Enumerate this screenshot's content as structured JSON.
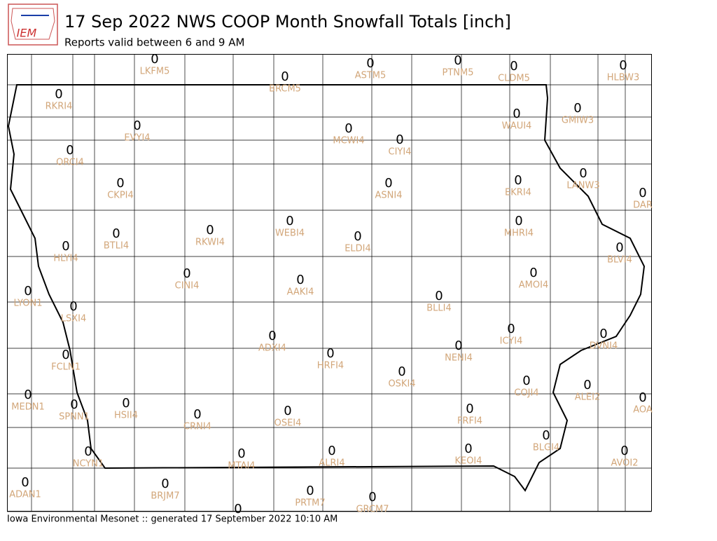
{
  "header": {
    "logo": "IEM",
    "title": "17 Sep 2022 NWS COOP Month Snowfall Totals [inch]",
    "subtitle": "Reports valid between 6 and 9 AM"
  },
  "stations": [
    {
      "label": "LKFM5",
      "value": 0
    },
    {
      "label": "BRCM5",
      "value": 0
    },
    {
      "label": "ASTM5",
      "value": 0
    },
    {
      "label": "PTNM5",
      "value": 0
    },
    {
      "label": "CLDM5",
      "value": 0
    },
    {
      "label": "HLBW3",
      "value": 0
    },
    {
      "label": "RKRI4",
      "value": 0
    },
    {
      "label": "EVYI4",
      "value": 0
    },
    {
      "label": "MCWI4",
      "value": 0
    },
    {
      "label": "CIYI4",
      "value": 0
    },
    {
      "label": "WAUI4",
      "value": 0
    },
    {
      "label": "GMIW3",
      "value": 0
    },
    {
      "label": "ORCI4",
      "value": 0
    },
    {
      "label": "CKPI4",
      "value": 0
    },
    {
      "label": "ASNI4",
      "value": 0
    },
    {
      "label": "EKRI4",
      "value": 0
    },
    {
      "label": "LANW3",
      "value": 0
    },
    {
      "label": "DAR",
      "value": 0
    },
    {
      "label": "BTLI4",
      "value": 0
    },
    {
      "label": "RKWI4",
      "value": 0
    },
    {
      "label": "WEBI4",
      "value": 0
    },
    {
      "label": "ELDI4",
      "value": 0
    },
    {
      "label": "MHRI4",
      "value": 0
    },
    {
      "label": "BLVI4",
      "value": 0
    },
    {
      "label": "HLYI4",
      "value": 0
    },
    {
      "label": "CINI4",
      "value": 0
    },
    {
      "label": "AAKI4",
      "value": 0
    },
    {
      "label": "AMOI4",
      "value": 0
    },
    {
      "label": "BLLI4",
      "value": 0
    },
    {
      "label": "LYON1",
      "value": 0
    },
    {
      "label": "LSXI4",
      "value": 0
    },
    {
      "label": "ICYI4",
      "value": 0
    },
    {
      "label": "DVNI4",
      "value": 0
    },
    {
      "label": "ADXI4",
      "value": 0
    },
    {
      "label": "HRFI4",
      "value": 0
    },
    {
      "label": "NENI4",
      "value": 0
    },
    {
      "label": "FCLN1",
      "value": 0
    },
    {
      "label": "OSKI4",
      "value": 0
    },
    {
      "label": "COJI4",
      "value": 0
    },
    {
      "label": "ALEI2",
      "value": 0
    },
    {
      "label": "MEDN1",
      "value": 0
    },
    {
      "label": "SPNN1",
      "value": 0
    },
    {
      "label": "HSII4",
      "value": 0
    },
    {
      "label": "CRNI4",
      "value": 0
    },
    {
      "label": "OSEI4",
      "value": 0
    },
    {
      "label": "FRFI4",
      "value": 0
    },
    {
      "label": "AOA",
      "value": 0
    },
    {
      "label": "BLGI4",
      "value": 0
    },
    {
      "label": "AVOI2",
      "value": 0
    },
    {
      "label": "NCYN1",
      "value": 0
    },
    {
      "label": "MTAI4",
      "value": 0
    },
    {
      "label": "ALRI4",
      "value": 0
    },
    {
      "label": "KEOI4",
      "value": 0
    },
    {
      "label": "ADAN1",
      "value": 0
    },
    {
      "label": "BRJM7",
      "value": 0
    },
    {
      "label": "PRTM7",
      "value": 0
    },
    {
      "label": "GRCM7",
      "value": 0
    },
    {
      "label": null,
      "value": 0
    }
  ],
  "footer": "Iowa Environmental Mesonet :: generated 17 September 2022 10:10 AM"
}
